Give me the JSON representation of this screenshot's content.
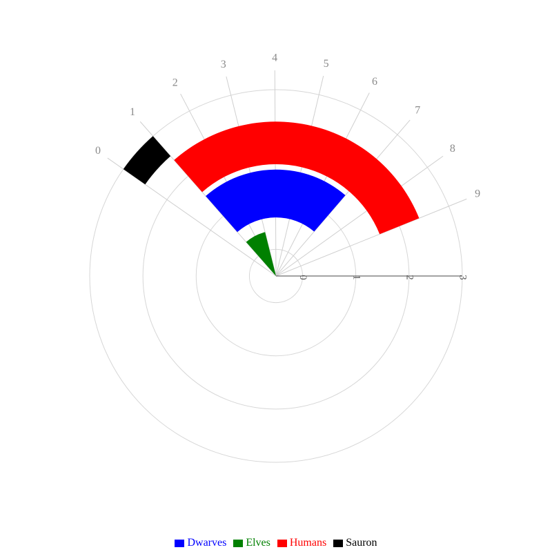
{
  "chart_data": {
    "type": "polar-bar",
    "angular_axis": {
      "tick_labels": [
        "0",
        "1",
        "2",
        "3",
        "4",
        "5",
        "6",
        "7",
        "8",
        "9"
      ]
    },
    "radial_axis": {
      "range": [
        0,
        3.5
      ],
      "tick_labels": [
        "0",
        "1",
        "2",
        "3"
      ]
    },
    "grid": true,
    "legend_position": "bottom",
    "series": [
      {
        "name": "Dwarves",
        "color": "#0000ff",
        "bars": [
          {
            "from": 1.1,
            "to": 2.0,
            "start_angle": 1,
            "end_angle": 7
          }
        ]
      },
      {
        "name": "Elves",
        "color": "#008000",
        "bars": [
          {
            "from": 0.0,
            "to": 0.85,
            "start_angle": 1,
            "end_angle": 3
          }
        ]
      },
      {
        "name": "Humans",
        "color": "#ff0000",
        "bars": [
          {
            "from": 2.1,
            "to": 2.9,
            "start_angle": 1,
            "end_angle": 9
          }
        ]
      },
      {
        "name": "Sauron",
        "color": "#000000",
        "bars": [
          {
            "from": 3.0,
            "to": 3.5,
            "start_angle": 0,
            "end_angle": 1
          }
        ]
      }
    ]
  }
}
